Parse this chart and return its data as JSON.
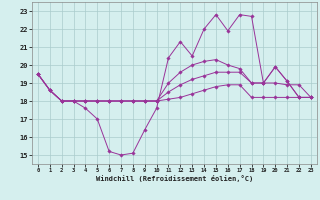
{
  "xlabel": "Windchill (Refroidissement éolien,°C)",
  "x": [
    0,
    1,
    2,
    3,
    4,
    5,
    6,
    7,
    8,
    9,
    10,
    11,
    12,
    13,
    14,
    15,
    16,
    17,
    18,
    19,
    20,
    21,
    22,
    23
  ],
  "line1": [
    19.5,
    18.6,
    18.0,
    18.0,
    17.6,
    17.0,
    15.2,
    15.0,
    15.1,
    16.4,
    17.6,
    20.4,
    21.3,
    20.5,
    22.0,
    22.8,
    21.9,
    22.8,
    22.7,
    19.0,
    19.9,
    19.1,
    18.2,
    18.2
  ],
  "line2": [
    19.5,
    18.6,
    18.0,
    18.0,
    18.0,
    18.0,
    18.0,
    18.0,
    18.0,
    18.0,
    18.0,
    18.1,
    18.2,
    18.4,
    18.6,
    18.8,
    18.9,
    18.9,
    18.2,
    18.2,
    18.2,
    18.2,
    18.2,
    18.2
  ],
  "line3": [
    19.5,
    18.6,
    18.0,
    18.0,
    18.0,
    18.0,
    18.0,
    18.0,
    18.0,
    18.0,
    18.0,
    18.5,
    18.9,
    19.2,
    19.4,
    19.6,
    19.6,
    19.6,
    19.0,
    19.0,
    19.0,
    18.9,
    18.9,
    18.2
  ],
  "line4": [
    19.5,
    18.6,
    18.0,
    18.0,
    18.0,
    18.0,
    18.0,
    18.0,
    18.0,
    18.0,
    18.0,
    19.0,
    19.6,
    20.0,
    20.2,
    20.3,
    20.0,
    19.8,
    19.0,
    19.0,
    19.9,
    19.1,
    18.2,
    18.2
  ],
  "line_color": "#993399",
  "bg_color": "#d5efee",
  "grid_color": "#aacccc",
  "ylim": [
    14.5,
    23.5
  ],
  "yticks": [
    15,
    16,
    17,
    18,
    19,
    20,
    21,
    22,
    23
  ],
  "xticks": [
    0,
    1,
    2,
    3,
    4,
    5,
    6,
    7,
    8,
    9,
    10,
    11,
    12,
    13,
    14,
    15,
    16,
    17,
    18,
    19,
    20,
    21,
    22,
    23
  ]
}
